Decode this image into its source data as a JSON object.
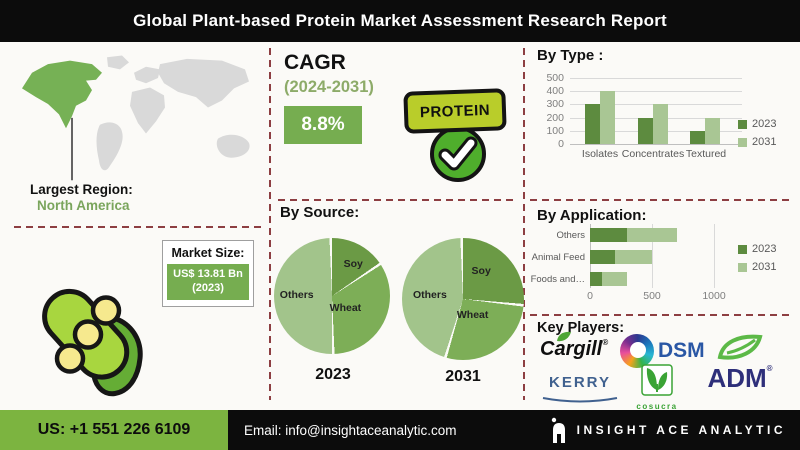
{
  "header": {
    "title": "Global Plant-based Protein Market Assessment Research Report"
  },
  "region": {
    "label": "Largest Region:",
    "value": "North America"
  },
  "market_size": {
    "label": "Market Size:",
    "value": "US$ 13.81 Bn",
    "year": "(2023)"
  },
  "cagr": {
    "label": "CAGR",
    "period": "(2024-2031)",
    "value": "8.8%"
  },
  "badge": {
    "label": "PROTEIN"
  },
  "sections": {
    "by_source": "By Source:",
    "by_type": "By Type :",
    "by_application": "By Application:",
    "key_players": "Key Players:"
  },
  "players": {
    "cargill": "Cargill",
    "dsm": "DSM",
    "kerry": "KERRY",
    "cosucra": "cosucra",
    "adm": "ADM"
  },
  "footer": {
    "phone": "US: +1 551 226 6109",
    "email": "Email: info@insightaceanalytic.com",
    "brand": "INSIGHT ACE ANALYTIC"
  },
  "colors": {
    "accent_green": "#76ad50",
    "series_2023": "#5d8b3f",
    "series_2031": "#a9c694",
    "badge_green": "#b9cd2a",
    "check_green": "#4fae2c",
    "divider_maroon": "#8d3e42",
    "map_highlight": "#76b155"
  },
  "chart_data": [
    {
      "id": "by_type",
      "type": "bar",
      "title": "By Type :",
      "categories": [
        "Isolates",
        "Concentrates",
        "Textured"
      ],
      "series": [
        {
          "name": "2023",
          "color": "#5d8b3f",
          "values": [
            300,
            200,
            100
          ]
        },
        {
          "name": "2031",
          "color": "#a9c694",
          "values": [
            400,
            300,
            200
          ]
        }
      ],
      "ylim": [
        0,
        500
      ],
      "yticks": [
        0,
        100,
        200,
        300,
        400,
        500
      ],
      "grid": true,
      "legend_position": "right"
    },
    {
      "id": "source_2023",
      "type": "pie",
      "year_label": "2023",
      "slices": [
        {
          "label": "Soy",
          "value": 16,
          "color": "#6b9a45"
        },
        {
          "label": "Wheat",
          "value": 34,
          "color": "#7dae57"
        },
        {
          "label": "Others",
          "value": 50,
          "color": "#a2c48b"
        }
      ]
    },
    {
      "id": "source_2031",
      "type": "pie",
      "year_label": "2031",
      "slices": [
        {
          "label": "Soy",
          "value": 27,
          "color": "#6b9a45"
        },
        {
          "label": "Wheat",
          "value": 28,
          "color": "#7dae57"
        },
        {
          "label": "Others",
          "value": 45,
          "color": "#a2c48b"
        }
      ]
    },
    {
      "id": "by_application",
      "type": "stacked_bar_horizontal",
      "title": "By Application:",
      "categories": [
        "Others",
        "Animal Feed",
        "Foods and…"
      ],
      "series": [
        {
          "name": "2023",
          "color": "#5d8b3f",
          "values": [
            300,
            200,
            100
          ]
        },
        {
          "name": "2031",
          "color": "#a9c694",
          "values": [
            400,
            300,
            200
          ]
        }
      ],
      "xlim": [
        0,
        1250
      ],
      "xticks": [
        0,
        500,
        1000
      ],
      "grid": true,
      "legend_position": "right"
    }
  ]
}
